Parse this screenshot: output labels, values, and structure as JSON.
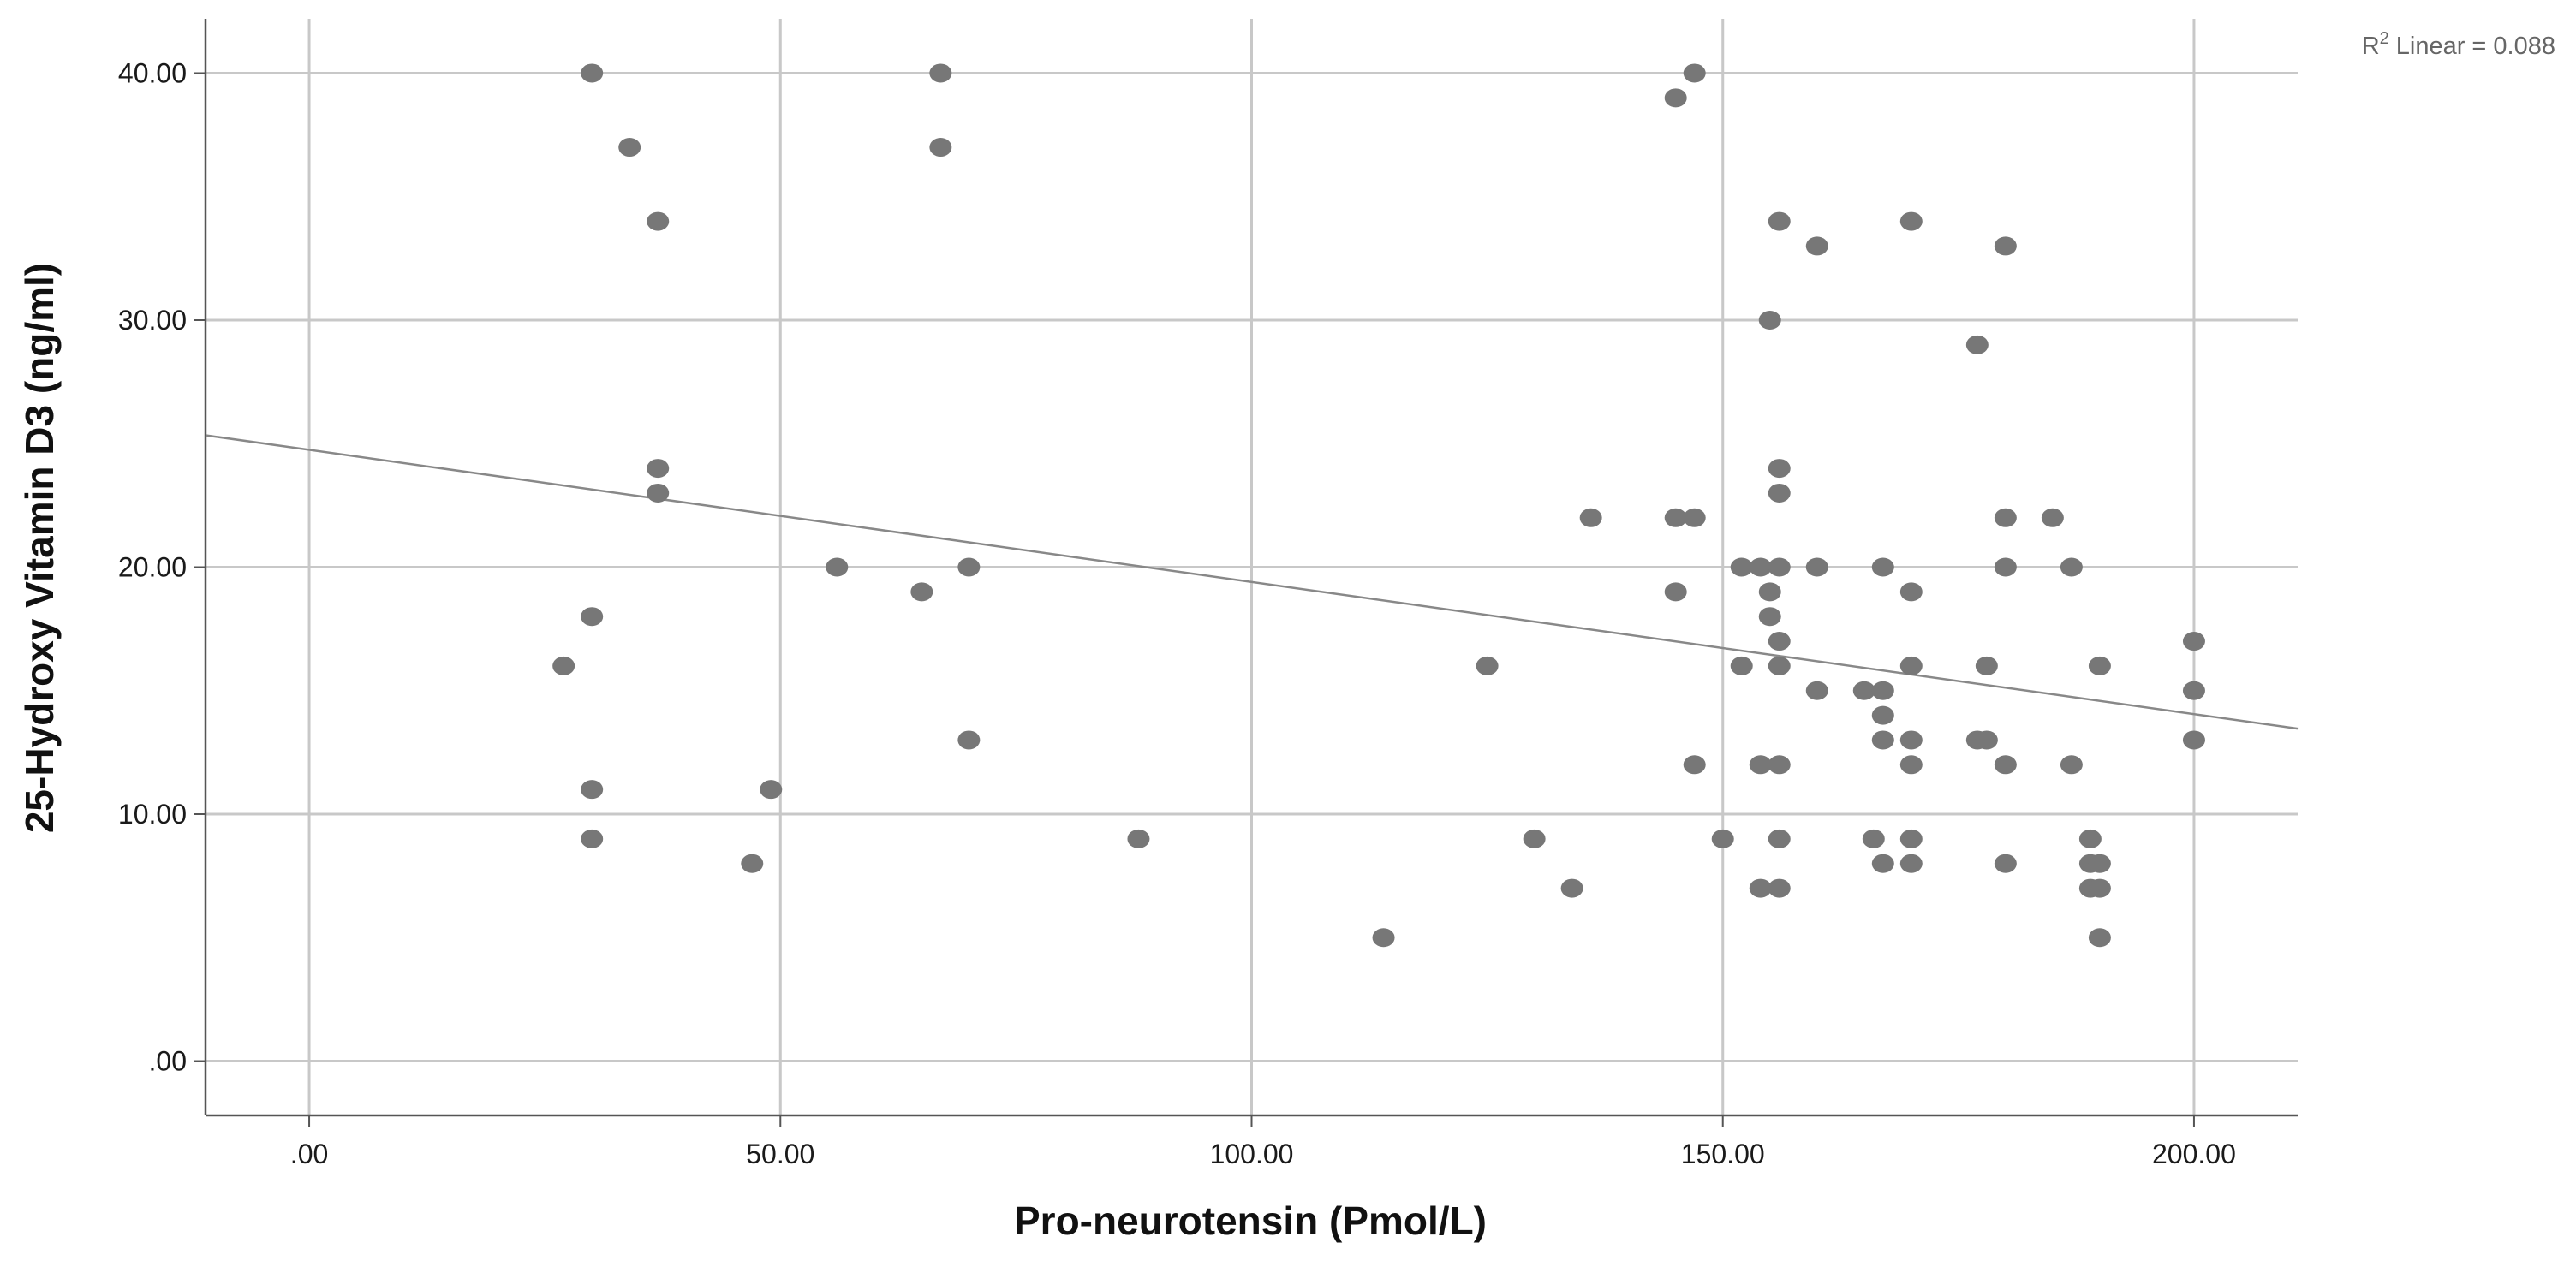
{
  "chart_data": {
    "type": "scatter",
    "title": "",
    "xlabel": "Pro-neurotensin (Pmol/L)",
    "ylabel": "25-Hydroxy Vitamin D3 (ng/ml)",
    "xlim": [
      -11,
      211
    ],
    "ylim": [
      -2.2,
      42.2
    ],
    "x_ticks": [
      0,
      50,
      100,
      150,
      200
    ],
    "x_tick_labels": [
      ".00",
      "50.00",
      "100.00",
      "150.00",
      "200.00"
    ],
    "y_ticks": [
      0,
      10,
      20,
      30,
      40
    ],
    "y_tick_labels": [
      ".00",
      "10.00",
      "20.00",
      "30.00",
      "40.00"
    ],
    "grid": true,
    "colors": {
      "points": "#777777",
      "fit_line": "#888888",
      "grid": "#c8c8c8",
      "axis": "#555555"
    },
    "fit": {
      "type": "linear",
      "r2_label": "Linear = 0.088",
      "r2_prefix": "R",
      "r2_sup": "2",
      "intercept": 24.75,
      "slope": -0.0535
    },
    "points": [
      {
        "x": 30,
        "y": 40
      },
      {
        "x": 67,
        "y": 40
      },
      {
        "x": 147,
        "y": 40
      },
      {
        "x": 145,
        "y": 39
      },
      {
        "x": 34,
        "y": 37
      },
      {
        "x": 67,
        "y": 37
      },
      {
        "x": 37,
        "y": 34
      },
      {
        "x": 156,
        "y": 34
      },
      {
        "x": 170,
        "y": 34
      },
      {
        "x": 160,
        "y": 33
      },
      {
        "x": 180,
        "y": 33
      },
      {
        "x": 155,
        "y": 30
      },
      {
        "x": 177,
        "y": 29
      },
      {
        "x": 37,
        "y": 24
      },
      {
        "x": 156,
        "y": 24
      },
      {
        "x": 37,
        "y": 23
      },
      {
        "x": 156,
        "y": 23
      },
      {
        "x": 136,
        "y": 22
      },
      {
        "x": 145,
        "y": 22
      },
      {
        "x": 147,
        "y": 22
      },
      {
        "x": 180,
        "y": 22
      },
      {
        "x": 185,
        "y": 22
      },
      {
        "x": 56,
        "y": 20
      },
      {
        "x": 70,
        "y": 20
      },
      {
        "x": 152,
        "y": 20
      },
      {
        "x": 154,
        "y": 20
      },
      {
        "x": 156,
        "y": 20
      },
      {
        "x": 160,
        "y": 20
      },
      {
        "x": 167,
        "y": 20
      },
      {
        "x": 180,
        "y": 20
      },
      {
        "x": 187,
        "y": 20
      },
      {
        "x": 65,
        "y": 19
      },
      {
        "x": 145,
        "y": 19
      },
      {
        "x": 155,
        "y": 19
      },
      {
        "x": 170,
        "y": 19
      },
      {
        "x": 30,
        "y": 18
      },
      {
        "x": 155,
        "y": 18
      },
      {
        "x": 156,
        "y": 17
      },
      {
        "x": 200,
        "y": 17
      },
      {
        "x": 27,
        "y": 16
      },
      {
        "x": 125,
        "y": 16
      },
      {
        "x": 152,
        "y": 16
      },
      {
        "x": 156,
        "y": 16
      },
      {
        "x": 170,
        "y": 16
      },
      {
        "x": 178,
        "y": 16
      },
      {
        "x": 190,
        "y": 16
      },
      {
        "x": 160,
        "y": 15
      },
      {
        "x": 165,
        "y": 15
      },
      {
        "x": 167,
        "y": 15
      },
      {
        "x": 200,
        "y": 15
      },
      {
        "x": 167,
        "y": 14
      },
      {
        "x": 70,
        "y": 13
      },
      {
        "x": 167,
        "y": 13
      },
      {
        "x": 170,
        "y": 13
      },
      {
        "x": 177,
        "y": 13
      },
      {
        "x": 178,
        "y": 13
      },
      {
        "x": 200,
        "y": 13
      },
      {
        "x": 147,
        "y": 12
      },
      {
        "x": 154,
        "y": 12
      },
      {
        "x": 156,
        "y": 12
      },
      {
        "x": 170,
        "y": 12
      },
      {
        "x": 180,
        "y": 12
      },
      {
        "x": 187,
        "y": 12
      },
      {
        "x": 30,
        "y": 11
      },
      {
        "x": 49,
        "y": 11
      },
      {
        "x": 30,
        "y": 9
      },
      {
        "x": 88,
        "y": 9
      },
      {
        "x": 130,
        "y": 9
      },
      {
        "x": 150,
        "y": 9
      },
      {
        "x": 156,
        "y": 9
      },
      {
        "x": 166,
        "y": 9
      },
      {
        "x": 170,
        "y": 9
      },
      {
        "x": 189,
        "y": 9
      },
      {
        "x": 47,
        "y": 8
      },
      {
        "x": 167,
        "y": 8
      },
      {
        "x": 170,
        "y": 8
      },
      {
        "x": 180,
        "y": 8
      },
      {
        "x": 189,
        "y": 8
      },
      {
        "x": 190,
        "y": 8
      },
      {
        "x": 134,
        "y": 7
      },
      {
        "x": 154,
        "y": 7
      },
      {
        "x": 156,
        "y": 7
      },
      {
        "x": 189,
        "y": 7
      },
      {
        "x": 190,
        "y": 7
      },
      {
        "x": 114,
        "y": 5
      },
      {
        "x": 190,
        "y": 5
      }
    ]
  }
}
